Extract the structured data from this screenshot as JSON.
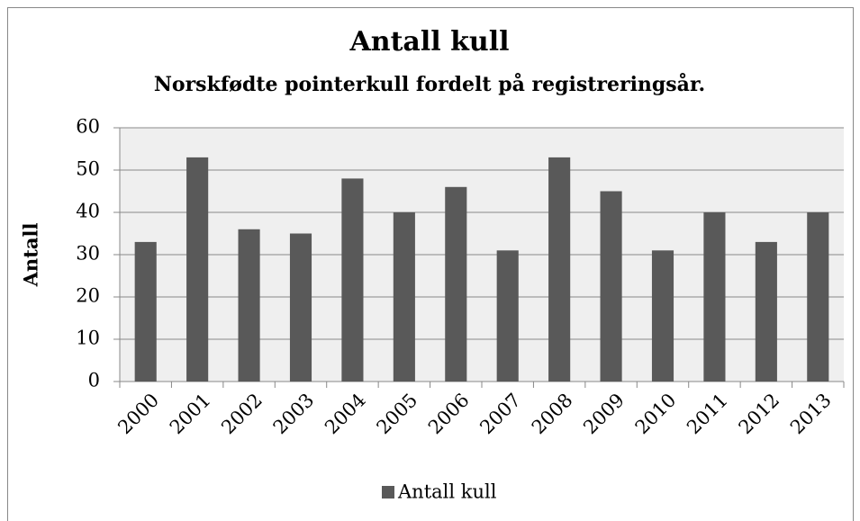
{
  "chart_data": {
    "type": "bar",
    "title": "Antall kull",
    "subtitle": "Norskfødte pointerkull fordelt på registreringsår.",
    "y_label": "Antall",
    "categories": [
      "2000",
      "2001",
      "2002",
      "2003",
      "2004",
      "2005",
      "2006",
      "2007",
      "2008",
      "2009",
      "2010",
      "2011",
      "2012",
      "2013"
    ],
    "series": [
      {
        "name": "Antall kull",
        "color": "#595959",
        "values": [
          33,
          53,
          36,
          35,
          48,
          40,
          46,
          31,
          53,
          45,
          31,
          40,
          33,
          40
        ]
      }
    ],
    "ylim": [
      0,
      60
    ],
    "yticks": [
      0,
      10,
      20,
      30,
      40,
      50,
      60
    ],
    "grid": true,
    "legend": "bottom"
  }
}
